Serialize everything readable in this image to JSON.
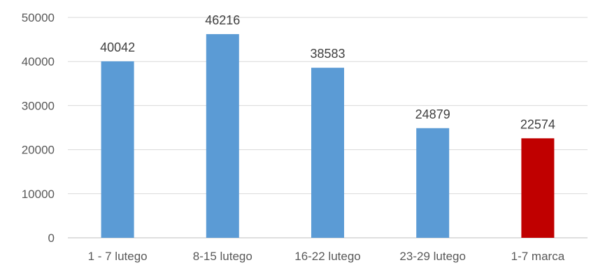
{
  "chart_data": {
    "type": "bar",
    "title": "",
    "xlabel": "",
    "ylabel": "",
    "categories": [
      "1 - 7 lutego",
      "8-15 lutego",
      "16-22 lutego",
      "23-29 lutego",
      "1-7 marca"
    ],
    "values": [
      40042,
      46216,
      38583,
      24879,
      22574
    ],
    "ylim": [
      0,
      50000
    ],
    "yticks": [
      0,
      10000,
      20000,
      30000,
      40000,
      50000
    ],
    "grid": true,
    "legend": "none",
    "bar_colors": [
      "#5b9bd5",
      "#5b9bd5",
      "#5b9bd5",
      "#5b9bd5",
      "#c00000"
    ],
    "data_labels": true
  }
}
